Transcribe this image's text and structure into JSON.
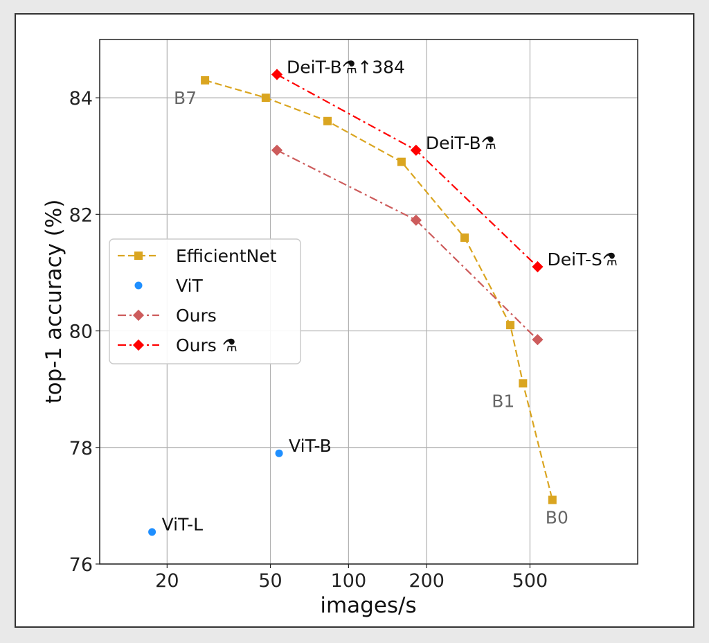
{
  "chart_data": {
    "type": "scatter",
    "xscale": "log",
    "xlabel": "images/s",
    "ylabel": "top-1 accuracy (%)",
    "xlim": [
      11,
      1300
    ],
    "ylim": [
      76,
      85
    ],
    "xticks": [
      20,
      50,
      100,
      200,
      500
    ],
    "xtick_labels": [
      "20",
      "50",
      "100",
      "200",
      "500"
    ],
    "yticks": [
      76,
      78,
      80,
      82,
      84
    ],
    "ytick_labels": [
      "76",
      "78",
      "80",
      "82",
      "84"
    ],
    "grid": true,
    "legend_position": "center-left",
    "series": [
      {
        "name": "EfficientNet",
        "style": "dashed",
        "marker": "square",
        "color": "#daa520",
        "points": [
          [
            28,
            84.3
          ],
          [
            48,
            84.0
          ],
          [
            83,
            83.6
          ],
          [
            160,
            82.9
          ],
          [
            280,
            81.6
          ],
          [
            420,
            80.1
          ],
          [
            470,
            79.1
          ],
          [
            610,
            77.1
          ]
        ]
      },
      {
        "name": "ViT",
        "style": "none",
        "marker": "circle",
        "color": "#1f8fff",
        "points": [
          [
            17.5,
            76.55
          ],
          [
            54,
            77.9
          ]
        ]
      },
      {
        "name": "Ours",
        "style": "dashdot",
        "marker": "diamond",
        "color": "#cd5c5c",
        "points": [
          [
            53,
            83.1
          ],
          [
            182,
            81.9
          ],
          [
            535,
            79.85
          ]
        ]
      },
      {
        "name": "Ours ⚗",
        "style": "dashdot",
        "marker": "diamond",
        "color": "#ff0000",
        "points": [
          [
            53,
            84.4
          ],
          [
            182,
            83.1
          ],
          [
            535,
            81.1
          ]
        ]
      }
    ],
    "annotations": [
      {
        "text": "DeiT-B⚗↑384",
        "x": 53,
        "y": 84.4,
        "color": "#111111",
        "anchor": "right-up"
      },
      {
        "text": "DeiT-B⚗",
        "x": 182,
        "y": 83.1,
        "color": "#111111",
        "anchor": "right-up"
      },
      {
        "text": "DeiT-S⚗",
        "x": 535,
        "y": 81.1,
        "color": "#111111",
        "anchor": "right-up"
      },
      {
        "text": "ViT-B",
        "x": 54,
        "y": 77.9,
        "color": "#111111",
        "anchor": "right-up"
      },
      {
        "text": "ViT-L",
        "x": 17.5,
        "y": 76.55,
        "color": "#111111",
        "anchor": "right-up"
      },
      {
        "text": "B7",
        "x": 28,
        "y": 84.3,
        "color": "#666666",
        "anchor": "left-down"
      },
      {
        "text": "B1",
        "x": 470,
        "y": 79.1,
        "color": "#666666",
        "anchor": "left-down"
      },
      {
        "text": "B0",
        "x": 610,
        "y": 77.1,
        "color": "#666666",
        "anchor": "below"
      }
    ]
  }
}
